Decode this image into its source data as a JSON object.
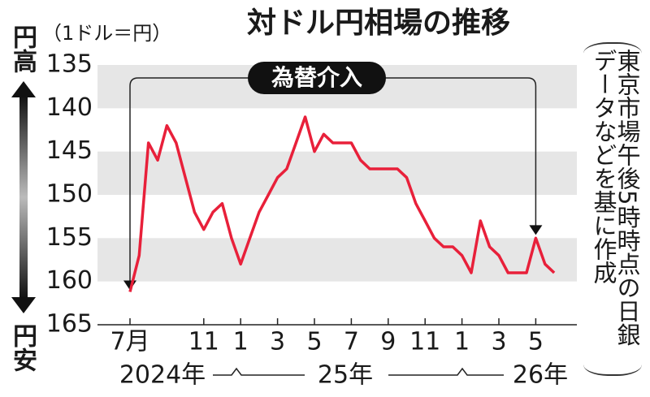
{
  "chart_data": {
    "type": "line",
    "title": "対ドル円相場の推移",
    "unit": "（1ドル＝円）",
    "y_top_label": "円高",
    "y_bottom_label": "円安",
    "annotation": "為替介入",
    "note": "東京市場午後5時時点の日銀データなどを基に作成",
    "years": [
      "2024年",
      "25年",
      "26年"
    ],
    "categories": [
      "7月",
      null,
      null,
      null,
      null,
      null,
      null,
      null,
      "11",
      null,
      null,
      null,
      "1",
      null,
      null,
      null,
      "3",
      null,
      null,
      null,
      "5",
      null,
      null,
      null,
      "7",
      null,
      null,
      null,
      "9",
      null,
      null,
      null,
      "11",
      null,
      null,
      null,
      "1",
      null,
      null,
      null,
      "3",
      null,
      null,
      null,
      "5",
      null,
      null
    ],
    "series": [
      {
        "name": "円相場",
        "color": "#e8203a",
        "values": [
          161.2,
          157,
          144,
          146,
          142,
          144,
          148,
          152,
          154,
          152,
          151,
          155,
          158,
          155,
          152,
          150,
          148,
          147,
          144,
          141,
          145,
          143,
          144,
          144,
          144,
          146,
          147,
          147,
          147,
          147,
          148,
          151,
          153,
          155,
          156,
          156,
          157,
          159,
          153,
          156,
          157,
          159,
          159,
          159,
          155,
          158,
          159
        ]
      }
    ],
    "ylim": [
      135,
      165
    ],
    "yticks": [
      135,
      140,
      145,
      150,
      155,
      160,
      165
    ],
    "y_reversed": true,
    "grid_bands": true
  }
}
